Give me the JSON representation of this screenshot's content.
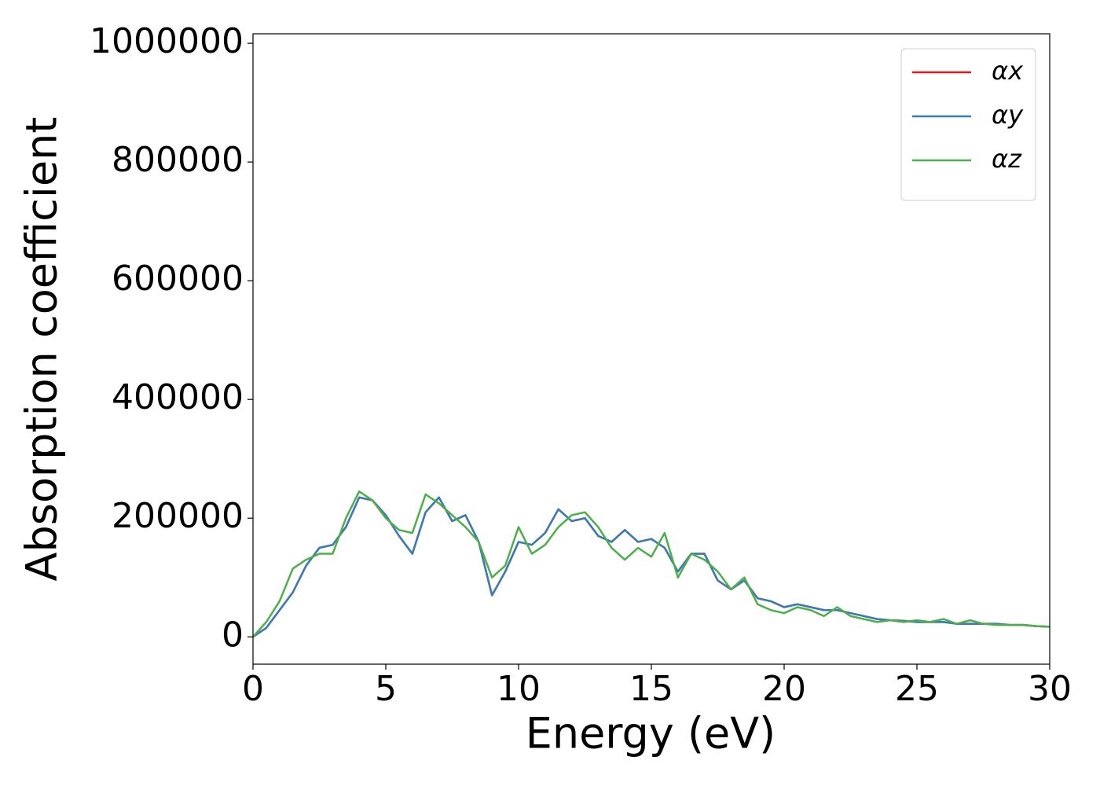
{
  "chart_data": {
    "type": "line",
    "xlabel": "Energy (eV)",
    "ylabel": "Absorption coefficient",
    "x": [
      0,
      0.5,
      1,
      1.5,
      2,
      2.5,
      3,
      3.5,
      4,
      4.5,
      5,
      5.5,
      6,
      6.5,
      7,
      7.5,
      8,
      8.5,
      9,
      9.5,
      10,
      10.5,
      11,
      11.5,
      12,
      12.5,
      13,
      13.5,
      14,
      14.5,
      15,
      15.5,
      16,
      16.5,
      17,
      17.5,
      18,
      18.5,
      19,
      19.5,
      20,
      20.5,
      21,
      21.5,
      22,
      22.5,
      23,
      23.5,
      24,
      24.5,
      25,
      25.5,
      26,
      26.5,
      27,
      27.5,
      28,
      28.5,
      29,
      29.5,
      30
    ],
    "series": [
      {
        "name": "αx",
        "color": "#e41a1c",
        "values": [
          0,
          15000,
          45000,
          75000,
          120000,
          150000,
          155000,
          185000,
          235000,
          230000,
          205000,
          170000,
          140000,
          210000,
          235000,
          195000,
          205000,
          160000,
          70000,
          110000,
          160000,
          155000,
          175000,
          215000,
          195000,
          200000,
          170000,
          160000,
          180000,
          160000,
          165000,
          150000,
          110000,
          140000,
          140000,
          95000,
          80000,
          95000,
          65000,
          60000,
          50000,
          55000,
          50000,
          45000,
          45000,
          40000,
          35000,
          30000,
          28000,
          27000,
          25000,
          25000,
          25000,
          22000,
          22000,
          22000,
          22000,
          20000,
          20000,
          18000,
          17000
        ]
      },
      {
        "name": "αy",
        "color": "#377eb8",
        "values": [
          0,
          15000,
          45000,
          75000,
          120000,
          150000,
          155000,
          185000,
          235000,
          230000,
          205000,
          170000,
          140000,
          210000,
          235000,
          195000,
          205000,
          160000,
          70000,
          110000,
          160000,
          155000,
          175000,
          215000,
          195000,
          200000,
          170000,
          160000,
          180000,
          160000,
          165000,
          150000,
          110000,
          140000,
          140000,
          95000,
          80000,
          95000,
          65000,
          60000,
          50000,
          55000,
          50000,
          45000,
          45000,
          40000,
          35000,
          30000,
          28000,
          27000,
          25000,
          25000,
          25000,
          22000,
          22000,
          22000,
          22000,
          20000,
          20000,
          18000,
          17000
        ]
      },
      {
        "name": "αz",
        "color": "#4daf4a",
        "values": [
          0,
          25000,
          60000,
          115000,
          130000,
          140000,
          140000,
          200000,
          245000,
          230000,
          200000,
          180000,
          175000,
          240000,
          225000,
          205000,
          185000,
          160000,
          100000,
          120000,
          185000,
          140000,
          155000,
          185000,
          205000,
          210000,
          185000,
          150000,
          130000,
          150000,
          135000,
          175000,
          100000,
          140000,
          130000,
          110000,
          80000,
          100000,
          55000,
          45000,
          40000,
          50000,
          45000,
          35000,
          50000,
          35000,
          30000,
          25000,
          28000,
          25000,
          28000,
          25000,
          30000,
          22000,
          28000,
          22000,
          20000,
          20000,
          20000,
          18000,
          17000
        ]
      }
    ],
    "xlim": [
      0,
      30
    ],
    "xticks": [
      0,
      5,
      10,
      15,
      20,
      25,
      30
    ],
    "ylim": [
      -46000,
      1016000
    ],
    "yticks": [
      0,
      200000,
      400000,
      600000,
      800000,
      1000000
    ],
    "grid": false,
    "legend": "upper right"
  }
}
